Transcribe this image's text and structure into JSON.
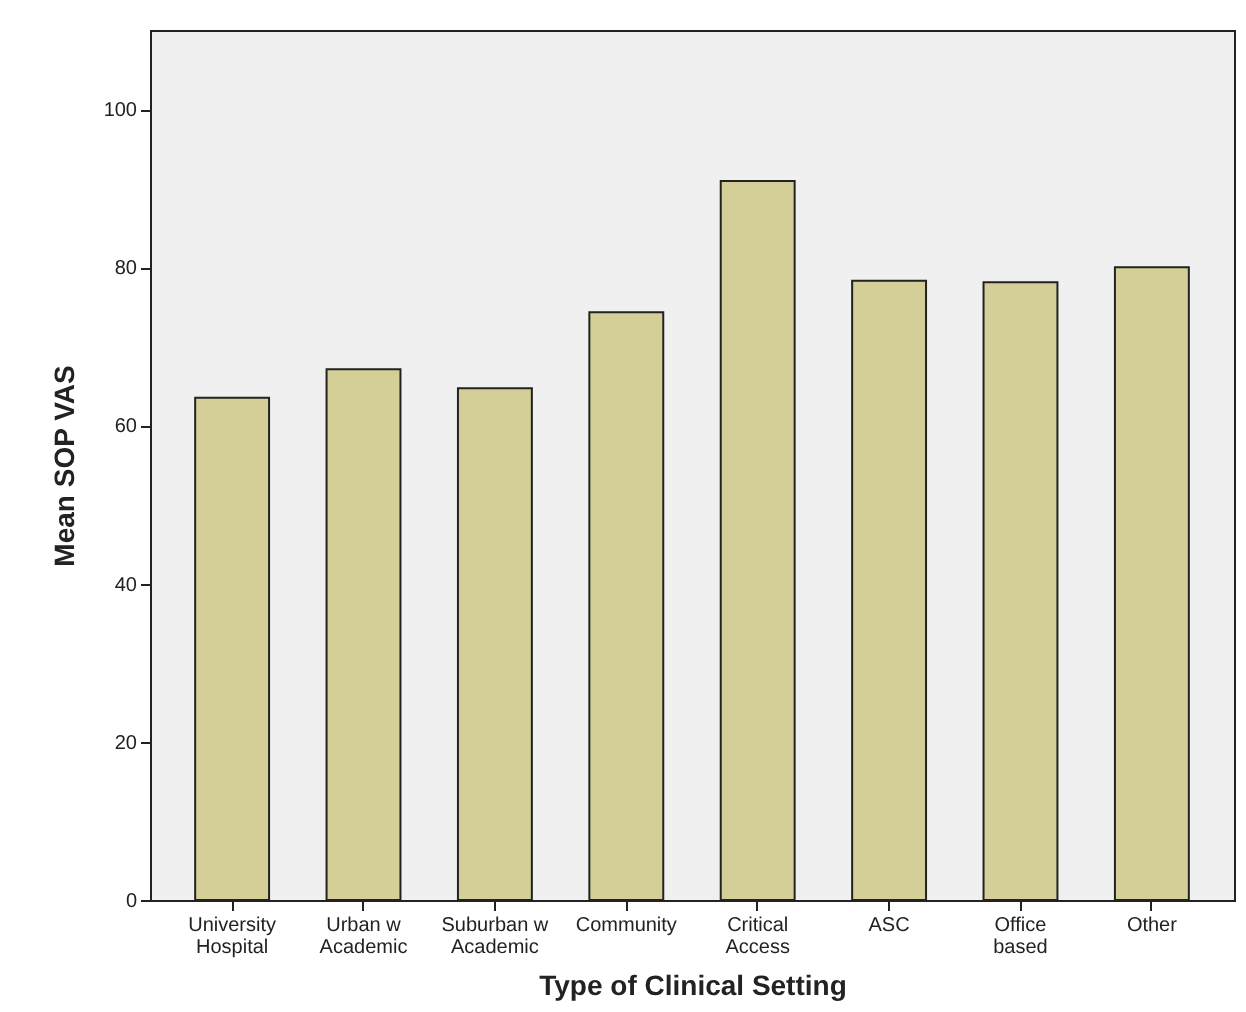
{
  "chart_data": {
    "type": "bar",
    "xlabel": "Type of Clinical Setting",
    "ylabel": "Mean SOP VAS",
    "categories": [
      "University Hospital",
      "Urban w Academic",
      "Suburban w Academic",
      "Community",
      "Critical Access",
      "ASC",
      "Office based",
      "Other"
    ],
    "values": [
      63.5,
      67.1,
      64.7,
      74.3,
      90.9,
      78.3,
      78.1,
      80.0
    ],
    "color": "#d3cf96",
    "ylim": [
      0,
      110
    ],
    "yticks": [
      0,
      20,
      40,
      60,
      80,
      100
    ],
    "grid": false
  }
}
